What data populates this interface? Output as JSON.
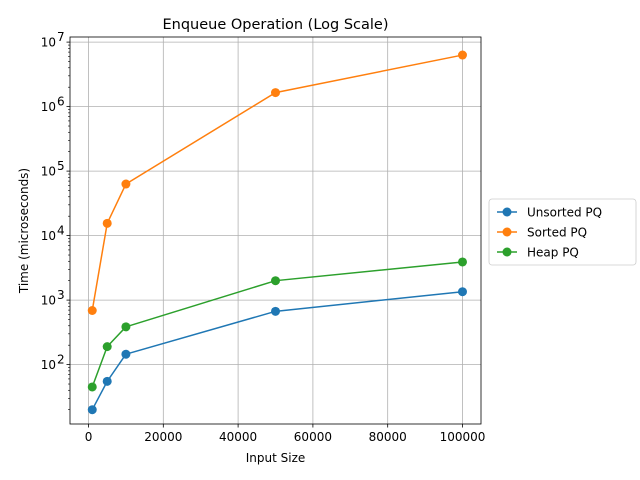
{
  "chart_data": {
    "type": "line",
    "title": "Enqueue Operation (Log Scale)",
    "xlabel": "Input Size",
    "ylabel": "Time (microseconds)",
    "x": [
      1000,
      5000,
      10000,
      50000,
      100000
    ],
    "xlim": [
      -4950,
      104950
    ],
    "ylim": [
      12,
      12000000
    ],
    "yscale": "log",
    "x_ticks": [
      0,
      20000,
      40000,
      60000,
      80000,
      100000
    ],
    "x_tick_labels": [
      "0",
      "20000",
      "40000",
      "60000",
      "80000",
      "100000"
    ],
    "y_ticks": [
      100,
      1000,
      10000,
      100000,
      1000000,
      10000000
    ],
    "y_tick_labels": [
      {
        "base": "10",
        "exp": "2"
      },
      {
        "base": "10",
        "exp": "3"
      },
      {
        "base": "10",
        "exp": "4"
      },
      {
        "base": "10",
        "exp": "5"
      },
      {
        "base": "10",
        "exp": "6"
      },
      {
        "base": "10",
        "exp": "7"
      }
    ],
    "grid": true,
    "legend_position": "right",
    "series": [
      {
        "name": "Unsorted PQ",
        "color": "#1f77b4",
        "values": [
          20,
          55,
          145,
          670,
          1350
        ]
      },
      {
        "name": "Sorted PQ",
        "color": "#ff7f0e",
        "values": [
          690,
          15500,
          63000,
          1650000,
          6300000
        ]
      },
      {
        "name": "Heap PQ",
        "color": "#2ca02c",
        "values": [
          45,
          190,
          385,
          2000,
          3900
        ]
      }
    ]
  }
}
